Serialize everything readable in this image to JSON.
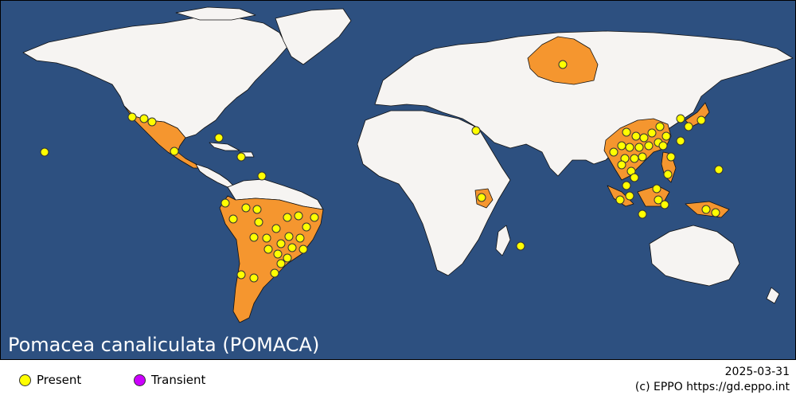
{
  "title": "Pomacea canaliculata (POMACA)",
  "legend": {
    "items": [
      {
        "label": "Present",
        "color": "#ffff00"
      },
      {
        "label": "Transient",
        "color": "#cc00ff"
      }
    ]
  },
  "date": "2025-03-31",
  "credit": "(c) EPPO https://gd.eppo.int",
  "colors": {
    "ocean": "#2d5080",
    "land": "#f6f4f2",
    "present_region": "#f5962f"
  }
}
